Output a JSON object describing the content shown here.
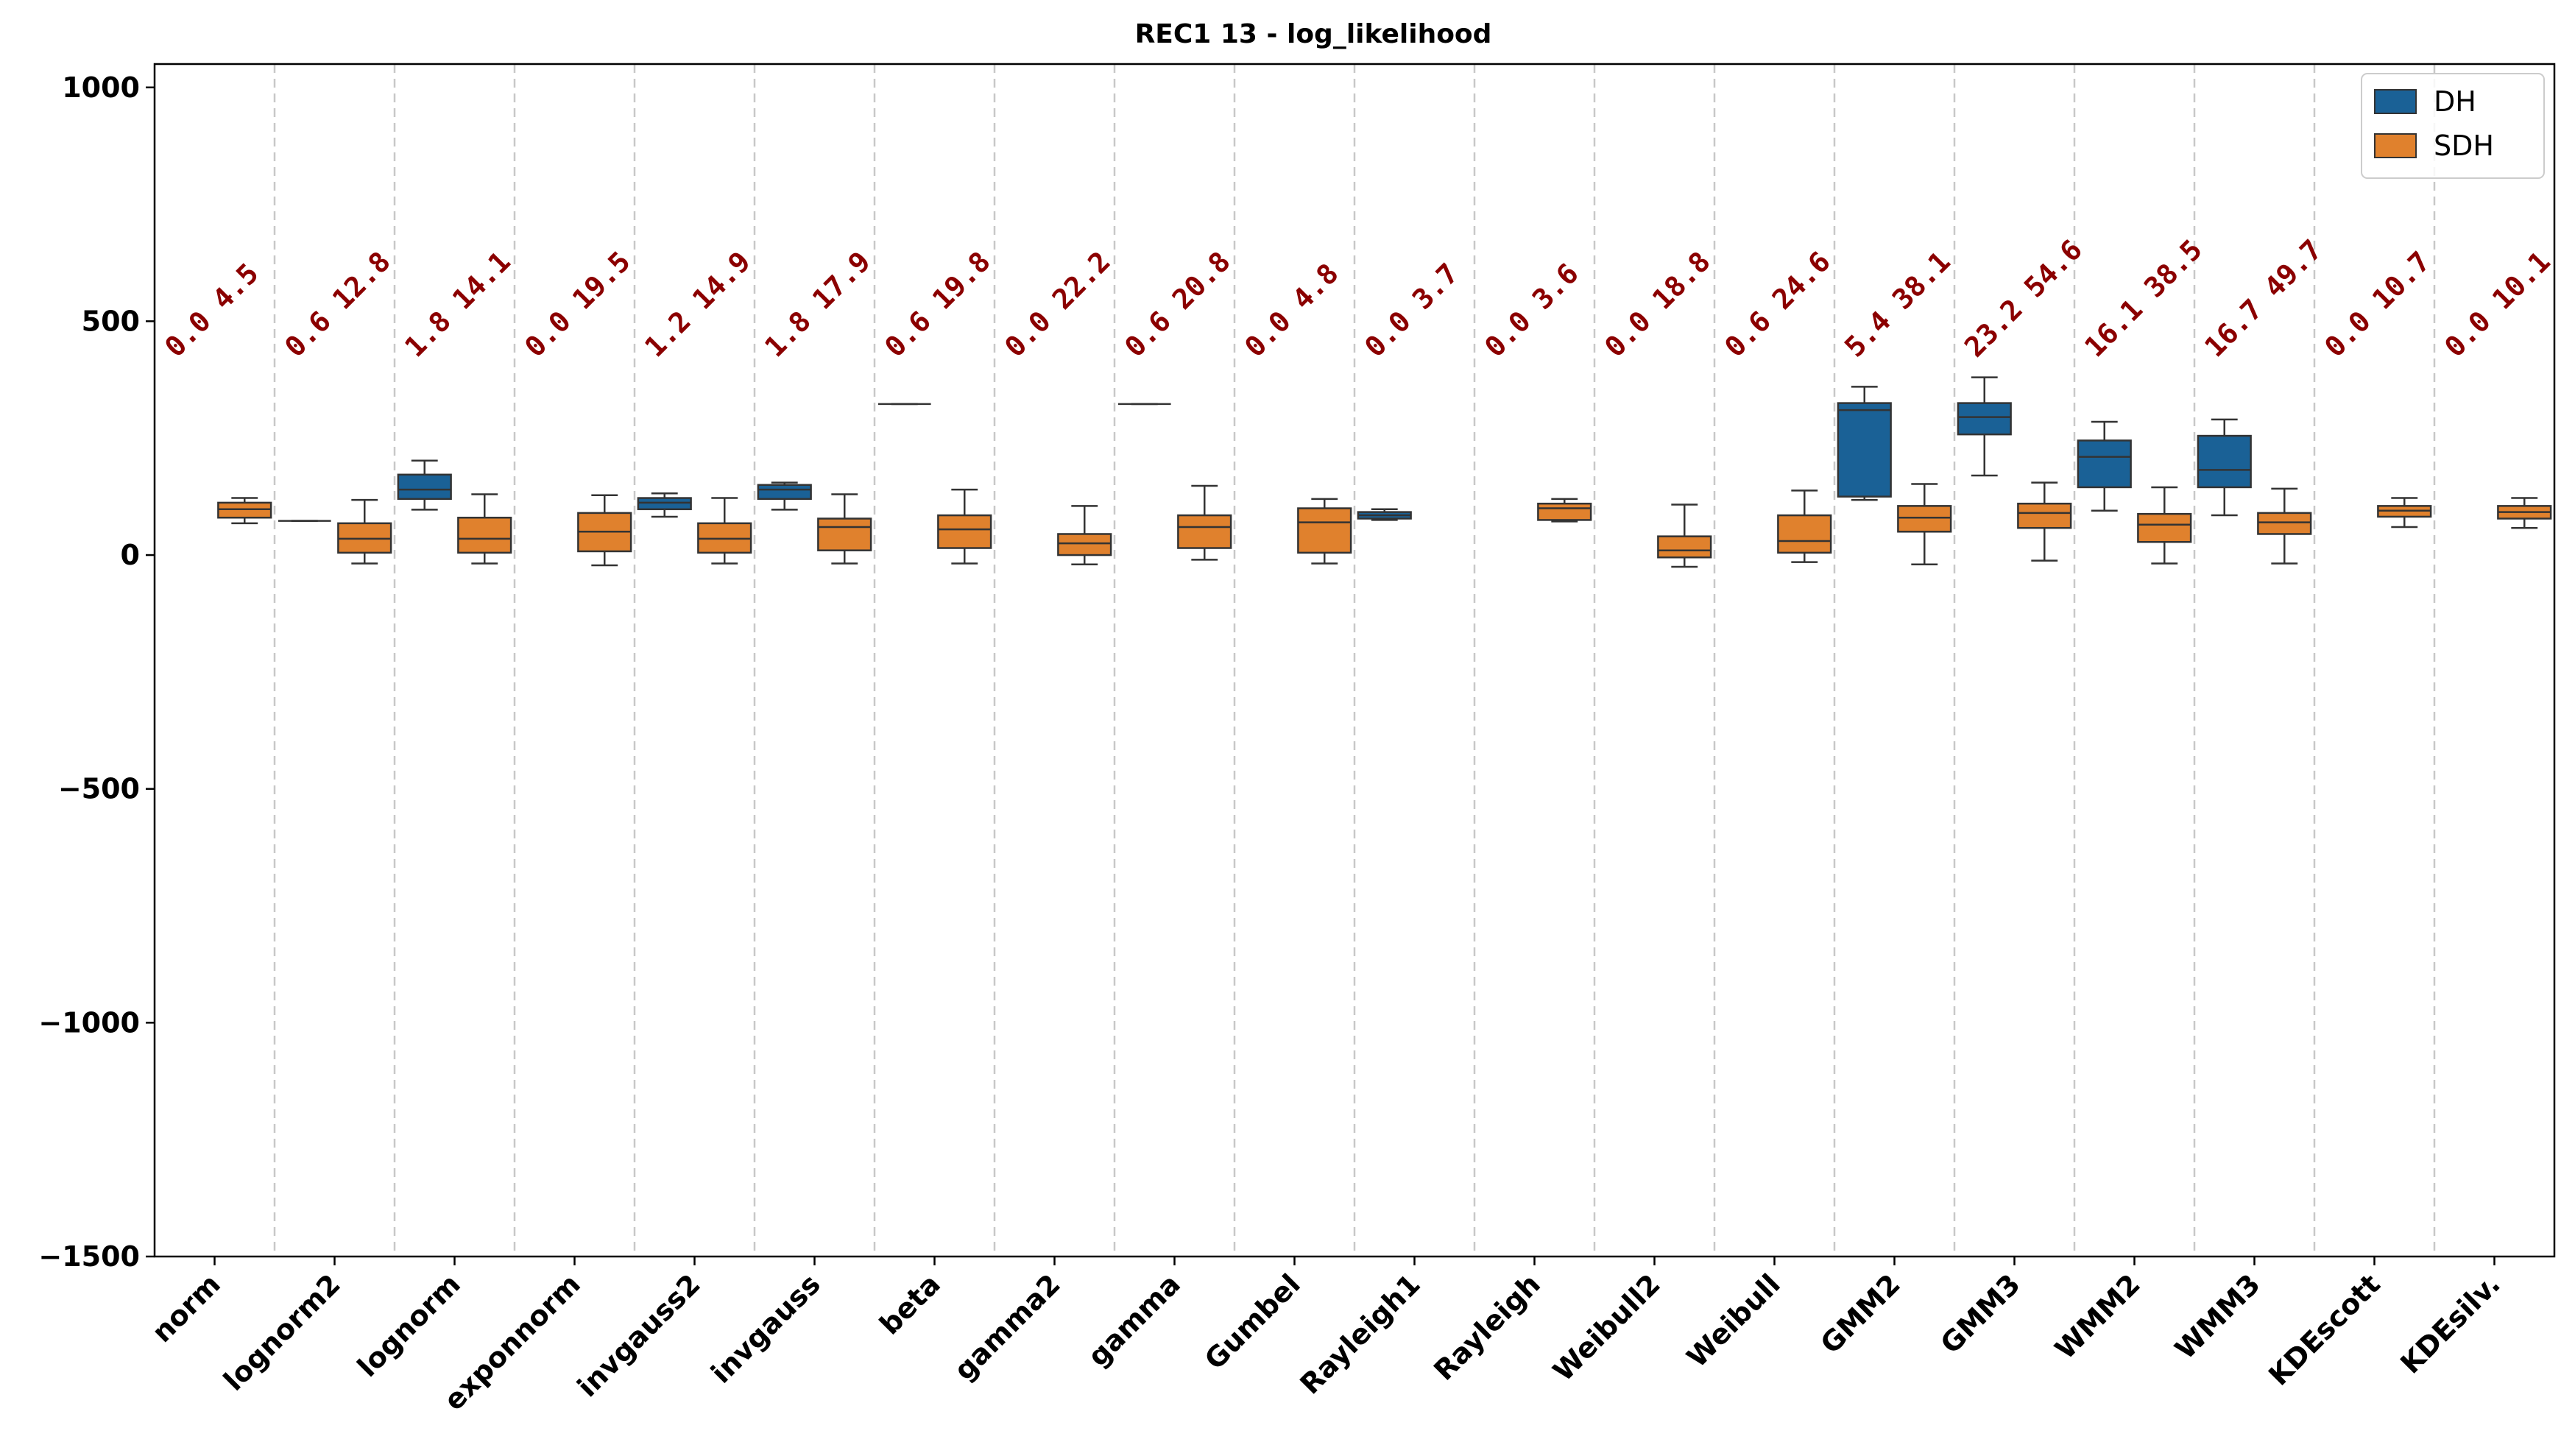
{
  "chart_data": {
    "type": "box",
    "title": "REC1 13 - log_likelihood",
    "xlabel": "",
    "ylabel": "",
    "ylim": [
      -1500,
      1050
    ],
    "yticks": [
      1000,
      500,
      0,
      -500,
      -1000,
      -1500
    ],
    "ytick_labels": [
      "1000",
      "500",
      "0",
      "−500",
      "−1000",
      "−1500"
    ],
    "categories": [
      "norm",
      "lognorm2",
      "lognorm",
      "exponnorm",
      "invgauss2",
      "invgauss",
      "beta",
      "gamma2",
      "gamma",
      "Gumbel",
      "Rayleigh1",
      "Rayleigh",
      "Weibull2",
      "Weibull",
      "GMM2",
      "GMM3",
      "WMM2",
      "WMM3",
      "KDEscott",
      "KDEsilv."
    ],
    "annotations": [
      "0.0 4.5",
      "0.6 12.8",
      "1.8 14.1",
      "0.0 19.5",
      "1.2 14.9",
      "1.8 17.9",
      "0.6 19.8",
      "0.0 22.2",
      "0.6 20.8",
      "0.0 4.8",
      "0.0 3.7",
      "0.0 3.6",
      "0.0 18.8",
      "0.6 24.6",
      "5.4 38.1",
      "23.2 54.6",
      "16.1 38.5",
      "16.7 49.7",
      "0.0 10.7",
      "0.0 10.1"
    ],
    "legend_position": "top-right",
    "grid": "vertical dashed separators between categories",
    "series": [
      {
        "name": "DH",
        "color": "#1a6196",
        "boxes": [
          null,
          {
            "whislo": 73,
            "q1": 73,
            "med": 73,
            "q3": 73,
            "whishi": 73
          },
          {
            "whislo": 97,
            "q1": 120,
            "med": 140,
            "q3": 172,
            "whishi": 202
          },
          null,
          {
            "whislo": 82,
            "q1": 98,
            "med": 112,
            "q3": 122,
            "whishi": 132
          },
          {
            "whislo": 97,
            "q1": 120,
            "med": 140,
            "q3": 150,
            "whishi": 155
          },
          {
            "whislo": 323,
            "q1": 323,
            "med": 323,
            "q3": 323,
            "whishi": 323
          },
          null,
          {
            "whislo": 323,
            "q1": 323,
            "med": 323,
            "q3": 323,
            "whishi": 323
          },
          null,
          {
            "whislo": 75,
            "q1": 78,
            "med": 85,
            "q3": 92,
            "whishi": 98
          },
          null,
          null,
          null,
          {
            "whislo": 118,
            "q1": 125,
            "med": 310,
            "q3": 325,
            "whishi": 360
          },
          {
            "whislo": 170,
            "q1": 258,
            "med": 295,
            "q3": 325,
            "whishi": 380
          },
          {
            "whislo": 95,
            "q1": 145,
            "med": 210,
            "q3": 245,
            "whishi": 285
          },
          {
            "whislo": 85,
            "q1": 145,
            "med": 182,
            "q3": 255,
            "whishi": 290
          },
          null,
          null
        ]
      },
      {
        "name": "SDH",
        "color": "#e0812d",
        "boxes": [
          {
            "whislo": 68,
            "q1": 80,
            "med": 98,
            "q3": 112,
            "whishi": 122
          },
          {
            "whislo": -18,
            "q1": 5,
            "med": 35,
            "q3": 68,
            "whishi": 118
          },
          {
            "whislo": -18,
            "q1": 5,
            "med": 35,
            "q3": 80,
            "whishi": 130
          },
          {
            "whislo": -22,
            "q1": 8,
            "med": 50,
            "q3": 90,
            "whishi": 128
          },
          {
            "whislo": -18,
            "q1": 5,
            "med": 35,
            "q3": 68,
            "whishi": 122
          },
          {
            "whislo": -18,
            "q1": 10,
            "med": 60,
            "q3": 78,
            "whishi": 130
          },
          {
            "whislo": -18,
            "q1": 15,
            "med": 55,
            "q3": 85,
            "whishi": 140
          },
          {
            "whislo": -20,
            "q1": 0,
            "med": 25,
            "q3": 45,
            "whishi": 105
          },
          {
            "whislo": -10,
            "q1": 15,
            "med": 60,
            "q3": 85,
            "whishi": 148
          },
          {
            "whislo": -18,
            "q1": 5,
            "med": 70,
            "q3": 100,
            "whishi": 120
          },
          null,
          {
            "whislo": 72,
            "q1": 75,
            "med": 100,
            "q3": 110,
            "whishi": 120
          },
          {
            "whislo": -25,
            "q1": -5,
            "med": 10,
            "q3": 40,
            "whishi": 108
          },
          {
            "whislo": -15,
            "q1": 5,
            "med": 30,
            "q3": 85,
            "whishi": 138
          },
          {
            "whislo": -20,
            "q1": 50,
            "med": 80,
            "q3": 105,
            "whishi": 152
          },
          {
            "whislo": -12,
            "q1": 58,
            "med": 90,
            "q3": 110,
            "whishi": 155
          },
          {
            "whislo": -18,
            "q1": 28,
            "med": 65,
            "q3": 88,
            "whishi": 145
          },
          {
            "whislo": -18,
            "q1": 45,
            "med": 70,
            "q3": 90,
            "whishi": 142
          },
          {
            "whislo": 60,
            "q1": 82,
            "med": 95,
            "q3": 105,
            "whishi": 122
          },
          {
            "whislo": 58,
            "q1": 78,
            "med": 92,
            "q3": 105,
            "whishi": 122
          }
        ]
      }
    ]
  }
}
